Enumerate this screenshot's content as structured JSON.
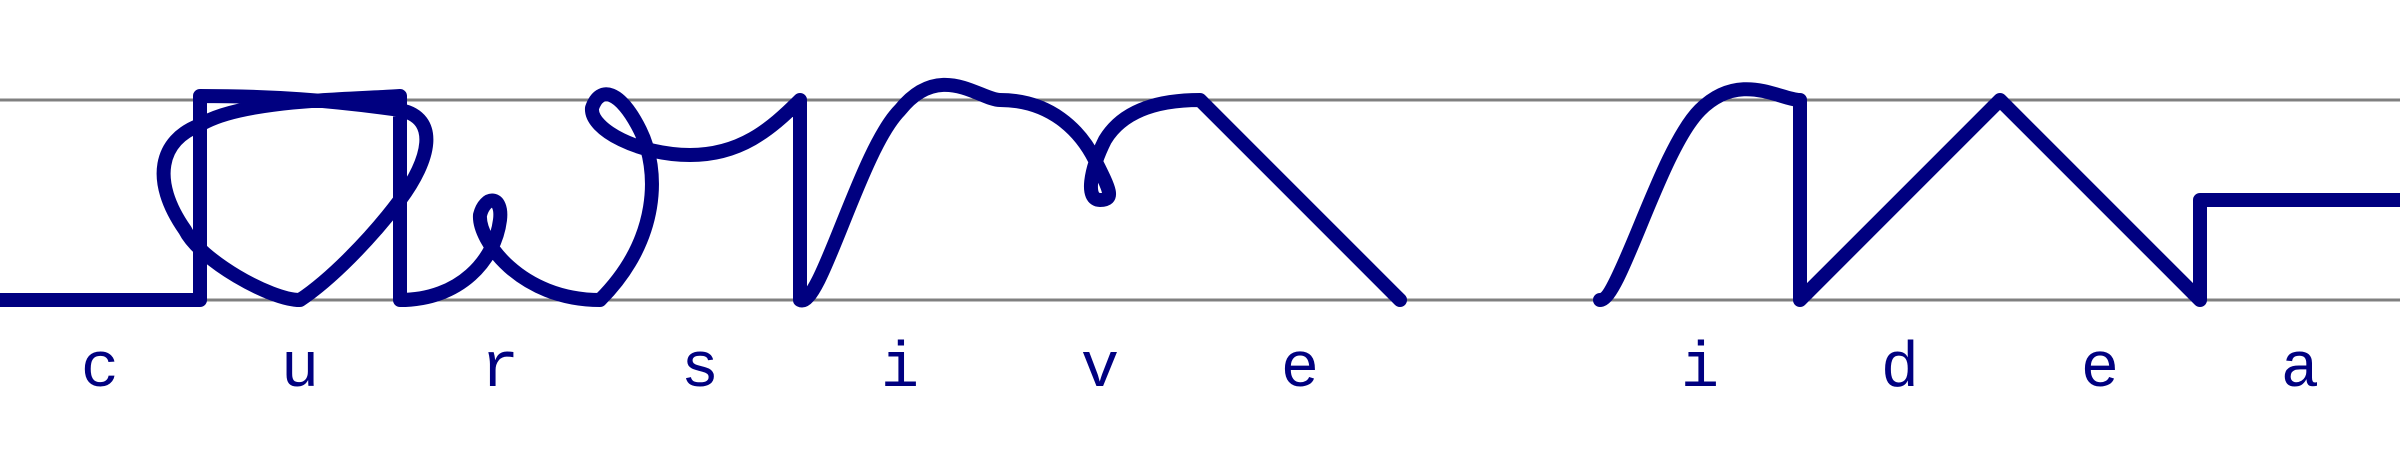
{
  "letters": [
    "c",
    "u",
    "r",
    "s",
    "i",
    "v",
    "e",
    "",
    "i",
    "d",
    "e",
    "a"
  ],
  "colors": {
    "ink": "#000080",
    "guide": "#808080",
    "background": "#ffffff"
  }
}
